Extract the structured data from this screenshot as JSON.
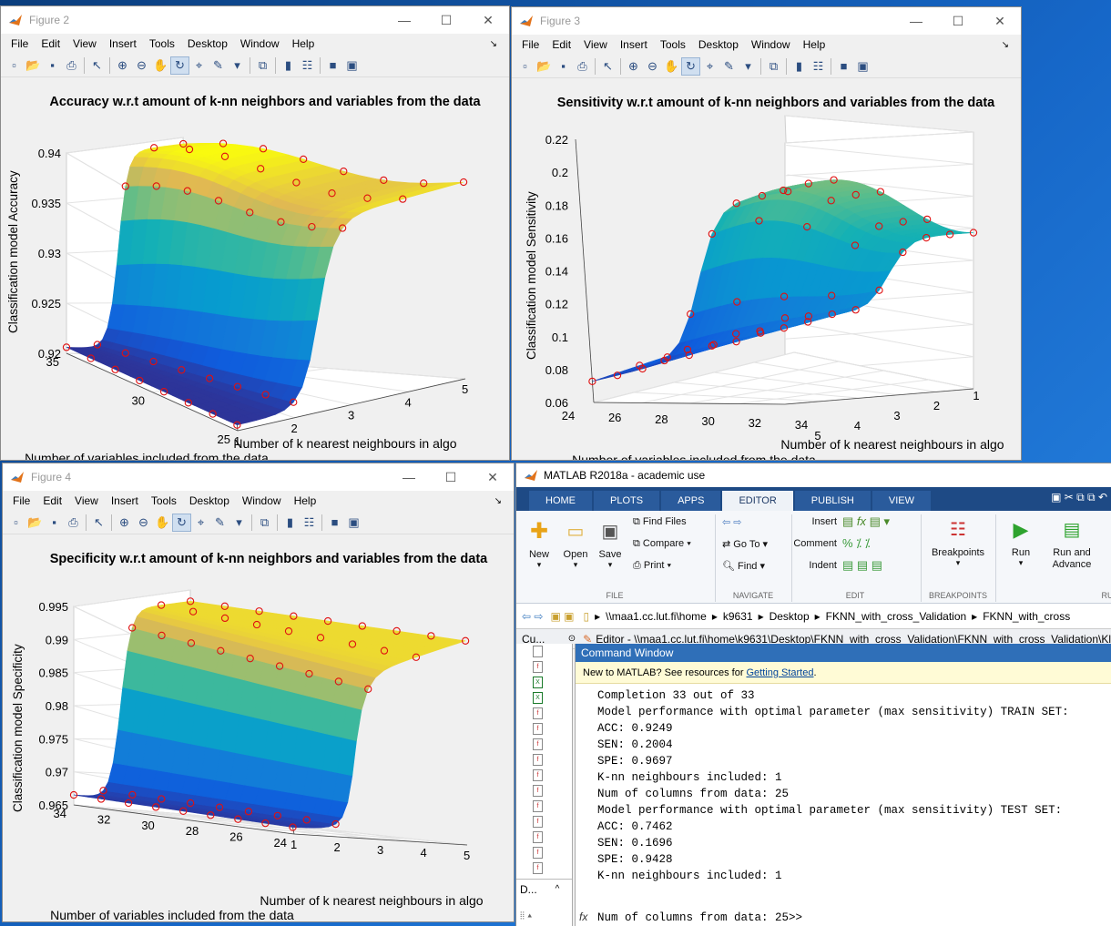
{
  "menu": [
    "File",
    "Edit",
    "View",
    "Insert",
    "Tools",
    "Desktop",
    "Window",
    "Help"
  ],
  "figures": [
    {
      "window_title": "Figure 2",
      "plot_title": "Accuracy w.r.t amount of k-nn neighbors and variables from the data",
      "zlabel": "Classification model Accuracy",
      "xlabel": "Number of k nearest neighbours in algo",
      "ylabel": "Number of variables included from the data",
      "zticks": [
        "0.94",
        "0.935",
        "0.93",
        "0.925",
        "0.92"
      ],
      "kticks": [
        "1",
        "2",
        "3",
        "4",
        "5"
      ],
      "vticks": [
        "35",
        "30",
        "25"
      ]
    },
    {
      "window_title": "Figure 3",
      "plot_title": "Sensitivity w.r.t amount of k-nn neighbors and variables from the data",
      "zlabel": "Classification model Sensitivity",
      "xlabel": "Number of k nearest neighbours in algo",
      "ylabel": "Number of variables included from the data",
      "zticks": [
        "0.22",
        "0.2",
        "0.18",
        "0.16",
        "0.14",
        "0.12",
        "0.1",
        "0.08",
        "0.06"
      ],
      "kticks": [
        "5",
        "4",
        "3",
        "2",
        "1"
      ],
      "vticks": [
        "24",
        "26",
        "28",
        "30",
        "32",
        "34"
      ]
    },
    {
      "window_title": "Figure 4",
      "plot_title": "Specificity w.r.t amount of k-nn neighbors and variables from the data",
      "zlabel": "Classification model Specificity",
      "xlabel": "Number of k nearest neighbours in algo",
      "ylabel": "Number of variables included from the data",
      "zticks": [
        "0.995",
        "0.99",
        "0.985",
        "0.98",
        "0.975",
        "0.97",
        "0.965"
      ],
      "kticks": [
        "1",
        "2",
        "3",
        "4",
        "5"
      ],
      "vticks": [
        "34",
        "32",
        "30",
        "28",
        "26",
        "24"
      ]
    }
  ],
  "matlab": {
    "title": "MATLAB R2018a - academic use",
    "tabs": [
      "HOME",
      "PLOTS",
      "APPS",
      "EDITOR",
      "PUBLISH",
      "VIEW"
    ],
    "active_tab": "EDITOR",
    "ribbon": {
      "new": "New",
      "open": "Open",
      "save": "Save",
      "find_files": "Find Files",
      "compare": "Compare",
      "print": "Print",
      "go_to": "Go To",
      "find": "Find",
      "insert": "Insert",
      "comment": "Comment",
      "indent": "Indent",
      "breakpoints": "Breakpoints",
      "run": "Run",
      "run_advance": "Run and Advance",
      "groups": [
        "FILE",
        "NAVIGATE",
        "EDIT",
        "BREAKPOINTS",
        "RU"
      ]
    },
    "address": [
      "\\\\maa1.cc.lut.fi\\home",
      "k9631",
      "Desktop",
      "FKNN_with_cross_Validation",
      "FKNN_with_cross"
    ],
    "current_folder_label": "Cu...",
    "details_label": "D...",
    "editor_path": "Editor - \\\\maa1.cc.lut.fi\\home\\k9631\\Desktop\\FKNN_with_cross_Validation\\FKNN_with_cross_Validation\\Kl",
    "command_window_title": "Command Window",
    "welcome": "New to MATLAB? See resources for",
    "welcome_link": "Getting Started",
    "welcome_end": ".",
    "lines": [
      "Completion 33 out of 33",
      "Model performance with optimal parameter (max sensitivity) TRAIN SET:",
      "ACC: 0.9249",
      "SEN: 0.2004",
      "SPE: 0.9697",
      "K-nn neighbours included: 1",
      "Num of columns from data: 25",
      "Model performance with optimal parameter (max sensitivity) TEST SET:",
      "ACC: 0.7462",
      "SEN: 0.1696",
      "SPE: 0.9428",
      "K-nn neighbours included: 1"
    ],
    "prompt_line": "Num of columns from data: 25>>",
    "fx": "fx"
  }
}
